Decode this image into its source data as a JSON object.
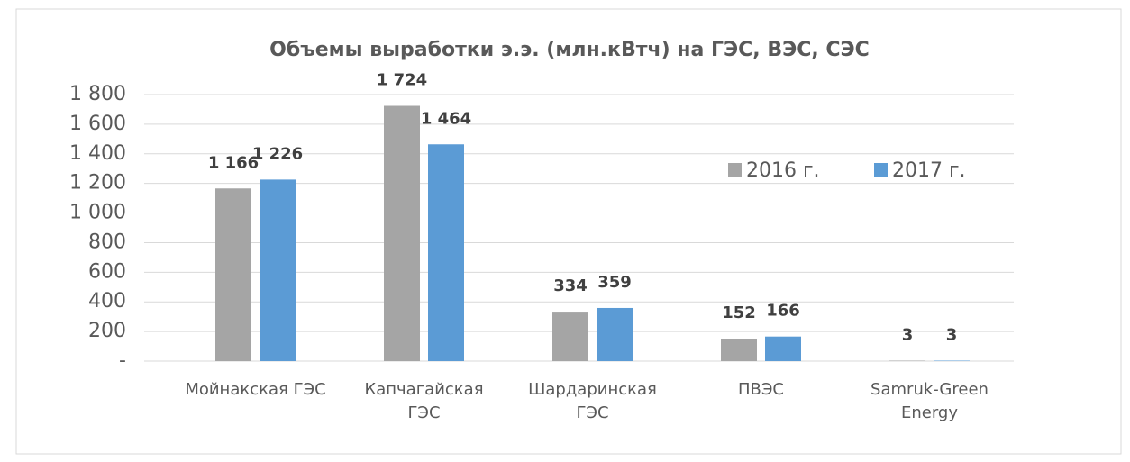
{
  "chart_data": {
    "type": "bar",
    "title": "Объемы выработки э.э. (млн.кВтч) на ГЭС, ВЭС, СЭС",
    "categories": [
      "Мойнакская ГЭС",
      "Капчагайская ГЭС",
      "Шардаринская ГЭС",
      "ПВЭС",
      "Samruk-Green Energy"
    ],
    "series": [
      {
        "name": "2016 г.",
        "color": "#a5a5a5",
        "values": [
          1166,
          1724,
          334,
          152,
          3
        ],
        "value_labels": [
          "1 166",
          "1 724",
          "334",
          "152",
          "3"
        ]
      },
      {
        "name": "2017 г.",
        "color": "#5b9bd5",
        "values": [
          1226,
          1464,
          359,
          166,
          3
        ],
        "value_labels": [
          "1 226",
          "1 464",
          "359",
          "166",
          "3"
        ]
      }
    ],
    "ylim": [
      0,
      1800
    ],
    "yticks": [
      {
        "value": 0,
        "label": "-"
      },
      200,
      400,
      600,
      800,
      {
        "value": 1000,
        "label": "1 000"
      },
      {
        "value": 1200,
        "label": "1 200"
      },
      {
        "value": 1400,
        "label": "1 400"
      },
      {
        "value": 1600,
        "label": "1 600"
      },
      {
        "value": 1800,
        "label": "1 800"
      }
    ],
    "grid": true,
    "legend": "upper right"
  }
}
